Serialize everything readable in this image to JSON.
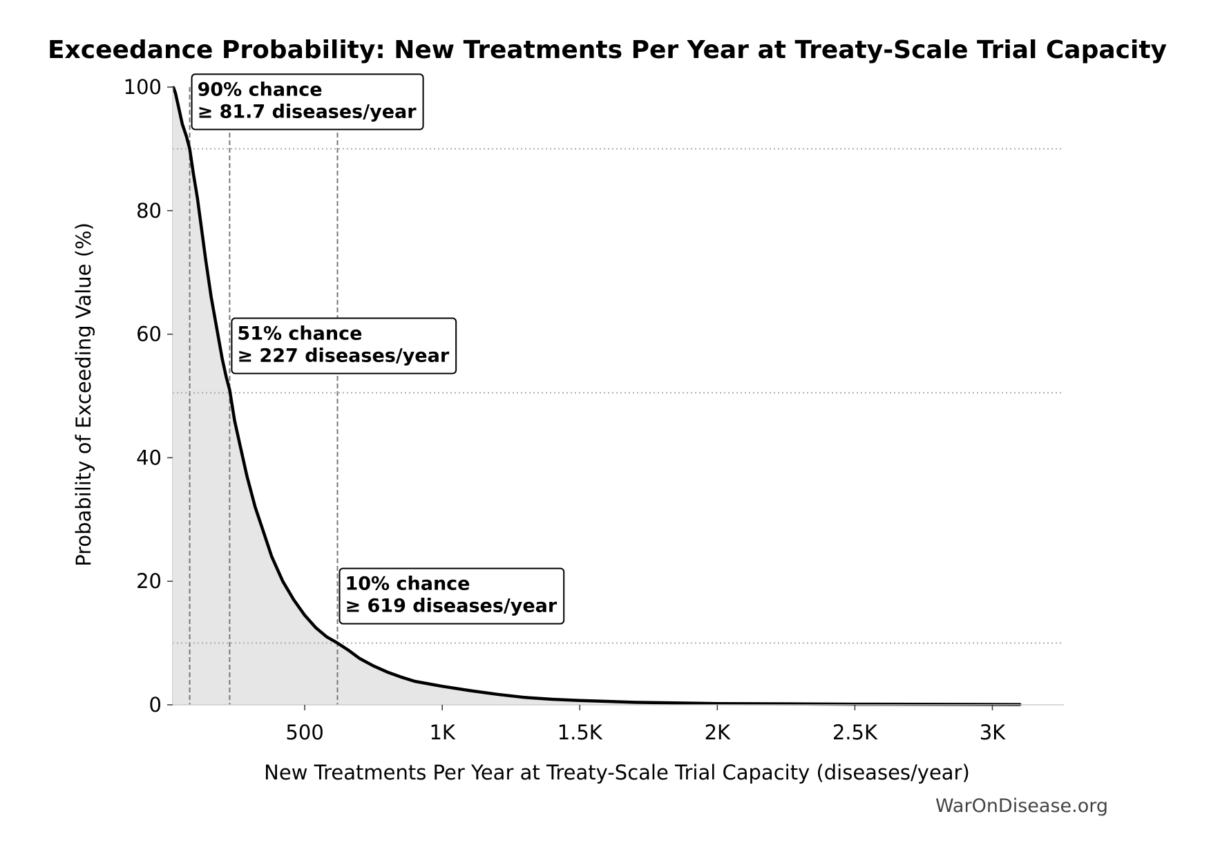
{
  "chart_data": {
    "type": "area",
    "title": "Exceedance Probability: New Treatments Per Year at Treaty-Scale Trial Capacity",
    "xlabel": "New Treatments Per Year at Treaty-Scale Trial Capacity (diseases/year)",
    "ylabel": "Probability of Exceeding Value (%)",
    "xlim": [
      20,
      3260
    ],
    "ylim": [
      0,
      100
    ],
    "grid": false,
    "x_ticks": [
      {
        "value": 500,
        "label": "500"
      },
      {
        "value": 1000,
        "label": "1K"
      },
      {
        "value": 1500,
        "label": "1.5K"
      },
      {
        "value": 2000,
        "label": "2K"
      },
      {
        "value": 2500,
        "label": "2.5K"
      },
      {
        "value": 3000,
        "label": "3K"
      }
    ],
    "y_ticks": [
      {
        "value": 0,
        "label": "0"
      },
      {
        "value": 20,
        "label": "20"
      },
      {
        "value": 40,
        "label": "40"
      },
      {
        "value": 60,
        "label": "60"
      },
      {
        "value": 80,
        "label": "80"
      },
      {
        "value": 100,
        "label": "100"
      }
    ],
    "series": [
      {
        "x": [
          23,
          30,
          40,
          55,
          70,
          81.7,
          95,
          110,
          125,
          140,
          160,
          180,
          200,
          215,
          227,
          245,
          265,
          290,
          320,
          350,
          380,
          420,
          460,
          500,
          540,
          580,
          619,
          660,
          700,
          750,
          800,
          850,
          900,
          1000,
          1100,
          1200,
          1300,
          1400,
          1500,
          1700,
          2000,
          2500,
          3100
        ],
        "y": [
          99.9,
          99,
          97,
          94,
          92,
          90,
          86,
          82,
          77,
          72,
          66,
          61,
          56,
          53,
          51,
          46,
          42,
          37,
          32,
          28,
          24,
          20,
          17,
          14.5,
          12.5,
          11,
          10,
          8.8,
          7.5,
          6.3,
          5.3,
          4.5,
          3.8,
          3,
          2.3,
          1.7,
          1.2,
          0.9,
          0.7,
          0.4,
          0.2,
          0.1,
          0.05
        ]
      }
    ],
    "thresholds": [
      {
        "prob": 90,
        "value": 81.7,
        "line1": "90% chance",
        "line2": "≥ 81.7 diseases/year"
      },
      {
        "prob": 50.5,
        "value": 227,
        "line1": "51% chance",
        "line2": "≥ 227 diseases/year"
      },
      {
        "prob": 10,
        "value": 619,
        "line1": "10% chance",
        "line2": "≥ 619 diseases/year"
      }
    ]
  },
  "watermark": "WarOnDisease.org"
}
